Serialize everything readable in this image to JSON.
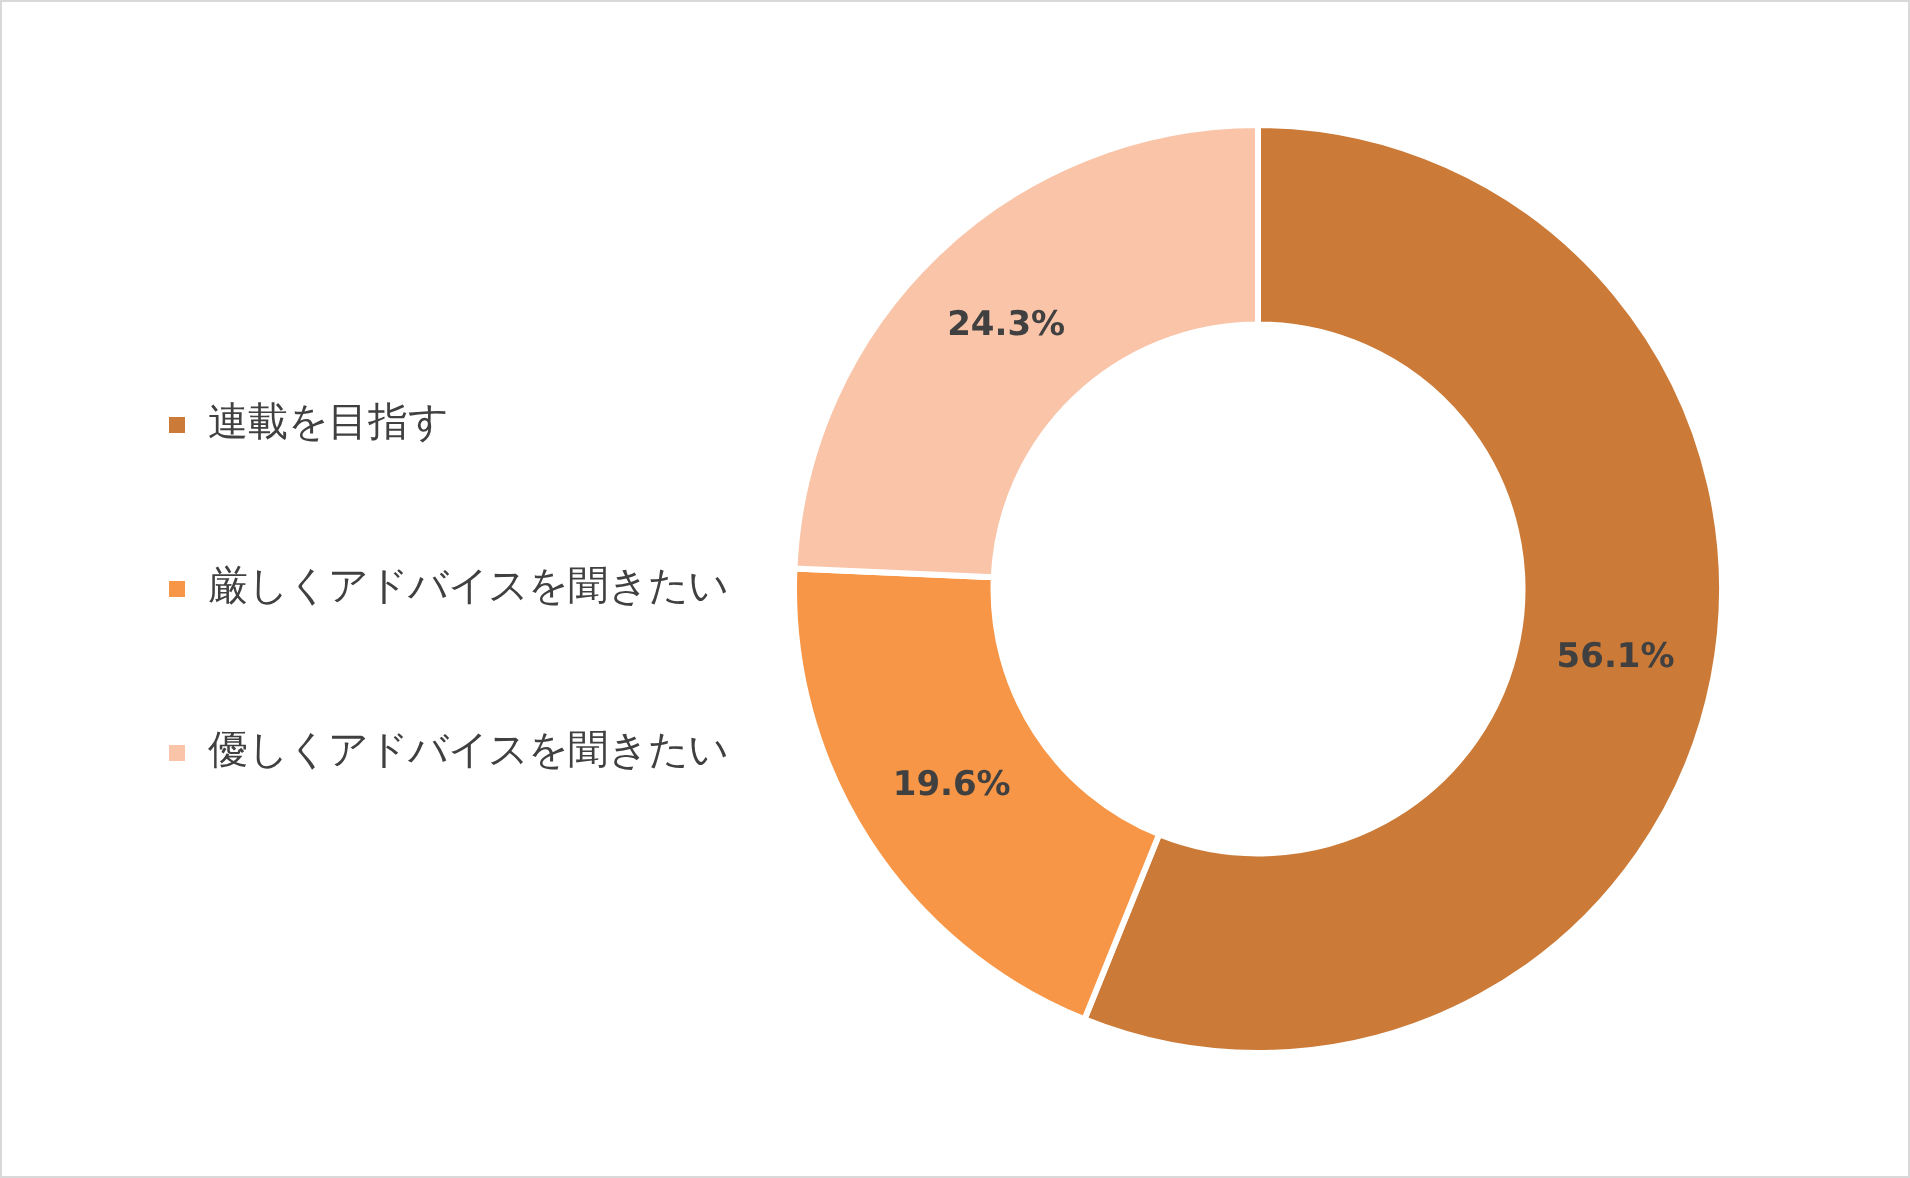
{
  "chart_data": {
    "type": "donut",
    "categories": [
      "連載を目指す",
      "厳しくアドバイスを聞きたい",
      "優しくアドバイスを聞きたい"
    ],
    "values": [
      56.1,
      19.6,
      24.3
    ],
    "colors": [
      "#cb7a37",
      "#f79646",
      "#f9c4a8"
    ],
    "value_labels": [
      "56.1%",
      "19.6%",
      "24.3%"
    ],
    "legend": "left"
  }
}
